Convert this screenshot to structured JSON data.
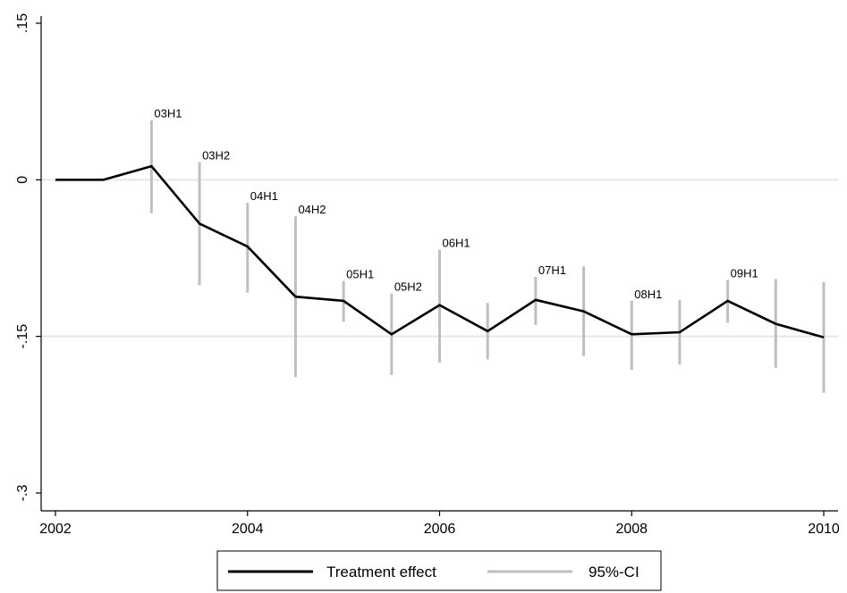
{
  "chart_data": {
    "type": "line",
    "title": "",
    "xlabel": "",
    "ylabel": "",
    "xlim": [
      2002,
      2010
    ],
    "ylim": [
      -0.3,
      0.15
    ],
    "x_ticks": [
      2002,
      2004,
      2006,
      2008,
      2010
    ],
    "x_tick_labels": [
      "2002",
      "2004",
      "2006",
      "2008",
      "2010"
    ],
    "y_ticks": [
      -0.3,
      -0.15,
      0,
      0.15
    ],
    "y_tick_labels": [
      "-.3",
      "-.15",
      "0",
      ".15"
    ],
    "grid": "horizontal",
    "reference_lines": [
      0,
      -0.15
    ],
    "legend": "bottom",
    "series": [
      {
        "name": "Treatment effect",
        "color": "#000000",
        "x": [
          2002,
          2002.5,
          2003,
          2003.5,
          2004,
          2004.5,
          2005,
          2005.5,
          2006,
          2006.5,
          2007,
          2007.5,
          2008,
          2008.5,
          2009,
          2009.5,
          2010
        ],
        "y": [
          0,
          0,
          0.013,
          -0.042,
          -0.064,
          -0.112,
          -0.116,
          -0.148,
          -0.12,
          -0.145,
          -0.115,
          -0.126,
          -0.148,
          -0.146,
          -0.116,
          -0.138,
          -0.151
        ]
      },
      {
        "name": "95%-CI",
        "color": "#bfbfbf",
        "x": [
          2003,
          2003.5,
          2004,
          2004.5,
          2005,
          2005.5,
          2006,
          2006.5,
          2007,
          2007.5,
          2008,
          2008.5,
          2009,
          2009.5,
          2010
        ],
        "lower": [
          -0.032,
          -0.101,
          -0.108,
          -0.189,
          -0.136,
          -0.187,
          -0.175,
          -0.172,
          -0.139,
          -0.169,
          -0.182,
          -0.177,
          -0.137,
          -0.18,
          -0.204
        ],
        "upper": [
          0.057,
          0.017,
          -0.022,
          -0.035,
          -0.097,
          -0.109,
          -0.067,
          -0.118,
          -0.093,
          -0.083,
          -0.116,
          -0.115,
          -0.096,
          -0.095,
          -0.098
        ]
      }
    ],
    "point_labels": [
      {
        "x": 2003,
        "text": "03H1"
      },
      {
        "x": 2003.5,
        "text": "03H2"
      },
      {
        "x": 2004,
        "text": "04H1"
      },
      {
        "x": 2004.5,
        "text": "04H2"
      },
      {
        "x": 2005,
        "text": "05H1"
      },
      {
        "x": 2005.5,
        "text": "05H2"
      },
      {
        "x": 2006,
        "text": "06H1"
      },
      {
        "x": 2007,
        "text": "07H1"
      },
      {
        "x": 2008,
        "text": "08H1"
      },
      {
        "x": 2009,
        "text": "09H1"
      }
    ]
  }
}
